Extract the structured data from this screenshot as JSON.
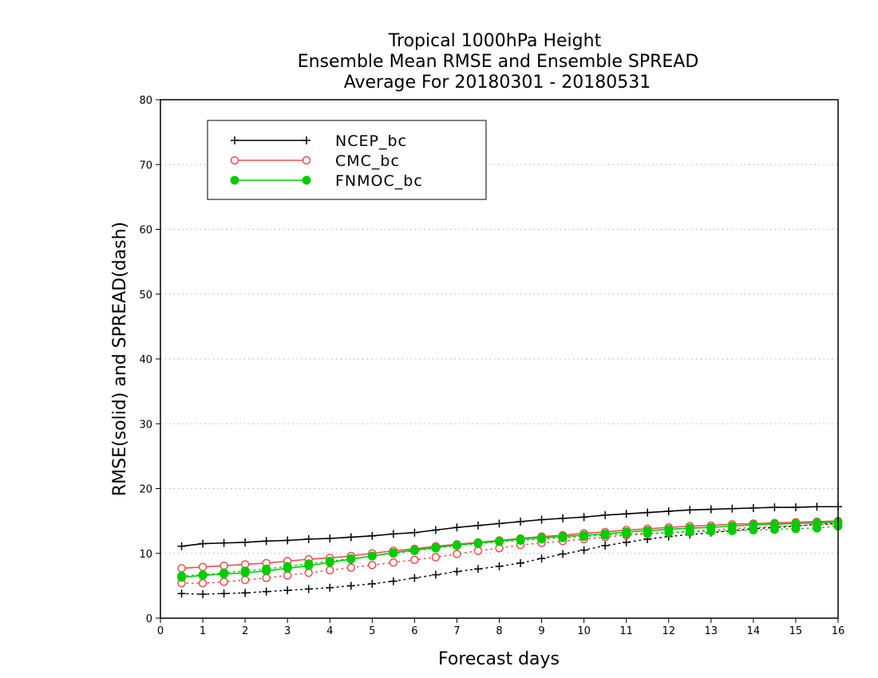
{
  "chart_data": {
    "type": "line",
    "title_lines": [
      "Tropical 1000hPa Height",
      "Ensemble Mean RMSE and Ensemble SPREAD",
      "Average For 20180301 - 20180531"
    ],
    "xlabel": "Forecast days",
    "ylabel": "RMSE(solid) and SPREAD(dash)",
    "xlim": [
      0,
      16
    ],
    "ylim": [
      0,
      80
    ],
    "x_ticks": [
      0,
      1,
      2,
      3,
      4,
      5,
      6,
      7,
      8,
      9,
      10,
      11,
      12,
      13,
      14,
      15,
      16
    ],
    "y_ticks": [
      0,
      10,
      20,
      30,
      40,
      50,
      60,
      70,
      80
    ],
    "grid": "horizontal dotted",
    "legend_position": "top-left",
    "x": [
      0.5,
      1,
      1.5,
      2,
      2.5,
      3,
      3.5,
      4,
      4.5,
      5,
      5.5,
      6,
      6.5,
      7,
      7.5,
      8,
      8.5,
      9,
      9.5,
      10,
      10.5,
      11,
      11.5,
      12,
      12.5,
      13,
      13.5,
      14,
      14.5,
      15,
      15.5,
      16
    ],
    "series": [
      {
        "name": "NCEP_bc",
        "color": "#000000",
        "marker": "plus",
        "rmse": [
          11.1,
          11.5,
          11.6,
          11.7,
          11.9,
          12.0,
          12.2,
          12.3,
          12.5,
          12.7,
          13.0,
          13.2,
          13.6,
          14.0,
          14.3,
          14.6,
          14.9,
          15.2,
          15.4,
          15.6,
          15.9,
          16.1,
          16.3,
          16.5,
          16.7,
          16.8,
          16.9,
          17.0,
          17.1,
          17.1,
          17.2,
          17.2
        ],
        "spread": [
          3.8,
          3.7,
          3.8,
          3.9,
          4.1,
          4.3,
          4.5,
          4.7,
          5.0,
          5.3,
          5.7,
          6.2,
          6.7,
          7.2,
          7.6,
          8.0,
          8.5,
          9.2,
          9.9,
          10.5,
          11.2,
          11.7,
          12.2,
          12.6,
          12.9,
          13.2,
          13.5,
          13.8,
          14.0,
          14.2,
          14.5,
          14.6
        ]
      },
      {
        "name": "CMC_bc",
        "color": "#ef4c4c",
        "marker": "open-circle",
        "rmse": [
          7.7,
          7.9,
          8.1,
          8.3,
          8.5,
          8.8,
          9.1,
          9.3,
          9.6,
          10.0,
          10.4,
          10.7,
          11.1,
          11.4,
          11.7,
          12.0,
          12.3,
          12.6,
          12.8,
          13.1,
          13.3,
          13.6,
          13.8,
          14.0,
          14.2,
          14.3,
          14.5,
          14.6,
          14.7,
          14.8,
          14.9,
          15.0
        ],
        "spread": [
          5.4,
          5.4,
          5.6,
          5.9,
          6.2,
          6.6,
          7.0,
          7.4,
          7.8,
          8.2,
          8.6,
          9.0,
          9.4,
          9.9,
          10.4,
          10.8,
          11.3,
          11.6,
          11.9,
          12.2,
          12.5,
          12.8,
          13.0,
          13.2,
          13.4,
          13.6,
          13.8,
          14.0,
          14.1,
          14.3,
          14.4,
          14.5
        ]
      },
      {
        "name": "FNMOC_bc",
        "color": "#00cc00",
        "marker": "filled-circle",
        "rmse": [
          6.3,
          6.6,
          6.8,
          7.0,
          7.3,
          7.7,
          8.1,
          8.6,
          9.1,
          9.6,
          10.1,
          10.5,
          10.9,
          11.3,
          11.6,
          11.9,
          12.2,
          12.4,
          12.6,
          12.8,
          13.0,
          13.3,
          13.5,
          13.7,
          13.9,
          14.0,
          14.2,
          14.4,
          14.5,
          14.6,
          14.7,
          14.8
        ],
        "spread": [
          6.5,
          6.7,
          7.0,
          7.3,
          7.6,
          8.0,
          8.4,
          8.8,
          9.2,
          9.6,
          10.0,
          10.4,
          10.8,
          11.2,
          11.5,
          11.8,
          12.0,
          12.2,
          12.4,
          12.6,
          12.8,
          13.0,
          13.1,
          13.2,
          13.3,
          13.4,
          13.5,
          13.6,
          13.7,
          13.8,
          13.9,
          14.2
        ]
      }
    ]
  }
}
